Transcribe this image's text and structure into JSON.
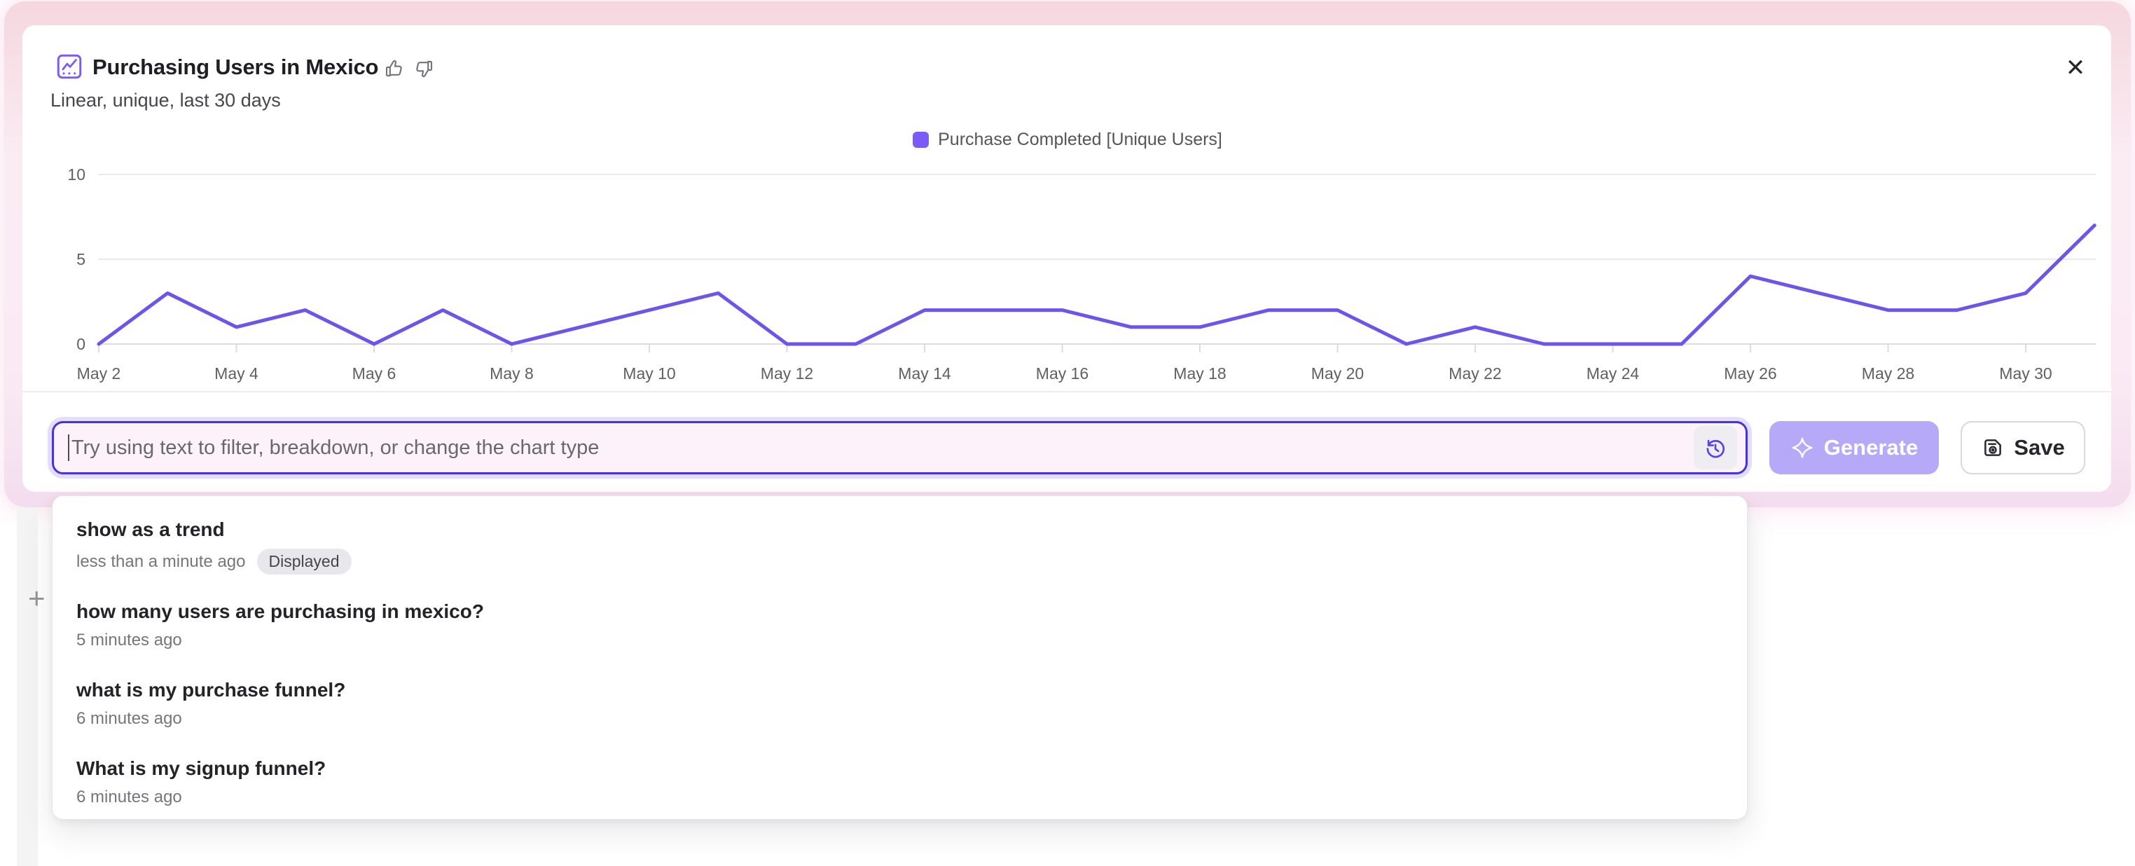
{
  "header": {
    "title": "Purchasing Users in Mexico",
    "subtitle": "Linear, unique, last 30 days"
  },
  "chart_data": {
    "type": "line",
    "title": "Purchasing Users in Mexico",
    "x": [
      "May 2",
      "May 3",
      "May 4",
      "May 5",
      "May 6",
      "May 7",
      "May 8",
      "May 9",
      "May 10",
      "May 11",
      "May 12",
      "May 13",
      "May 14",
      "May 15",
      "May 16",
      "May 17",
      "May 18",
      "May 19",
      "May 20",
      "May 21",
      "May 22",
      "May 23",
      "May 24",
      "May 25",
      "May 26",
      "May 27",
      "May 28",
      "May 29",
      "May 30",
      "May 31"
    ],
    "series": [
      {
        "name": "Purchase Completed [Unique Users]",
        "color": "#6d54ea",
        "values": [
          0,
          3,
          1,
          2,
          0,
          2,
          0,
          1,
          2,
          3,
          0,
          0,
          2,
          2,
          2,
          1,
          1,
          2,
          2,
          0,
          1,
          0,
          0,
          0,
          4,
          3,
          2,
          2,
          3,
          7
        ]
      }
    ],
    "ylim": [
      0,
      10
    ],
    "yticks": [
      0,
      5,
      10
    ],
    "x_tick_every": 2,
    "grid": true,
    "legend_position": "top-center",
    "legend_swatch_color": "#7b5bf7"
  },
  "prompt": {
    "placeholder": "Try using text to filter, breakdown, or change the chart type",
    "generate_label": "Generate",
    "save_label": "Save"
  },
  "history": {
    "items": [
      {
        "query": "show as a trend",
        "time": "less than a minute ago",
        "badge": "Displayed"
      },
      {
        "query": "how many users are purchasing in mexico?",
        "time": "5 minutes ago",
        "badge": ""
      },
      {
        "query": "what is my purchase funnel?",
        "time": "6 minutes ago",
        "badge": ""
      },
      {
        "query": "What is my signup funnel?",
        "time": "6 minutes ago",
        "badge": ""
      }
    ]
  },
  "icons": {
    "close": "✕",
    "background_plus": "+"
  },
  "colors": {
    "accent_line": "#6d54ea",
    "input_border": "#4533dc",
    "input_bg": "#fdf2fa",
    "generate_bg": "#b6a9f8",
    "grid_line": "#e9e9ee",
    "axis_line": "#dcdce2",
    "badge_bg": "#e8e8ec"
  }
}
